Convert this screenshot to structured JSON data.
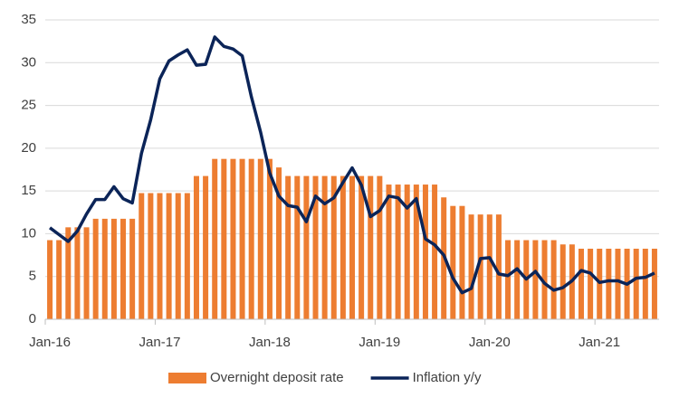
{
  "chart_data": {
    "type": "bar_line",
    "categories": [
      "Jan-16",
      null,
      null,
      null,
      null,
      null,
      null,
      null,
      null,
      null,
      null,
      null,
      "Jan-17",
      null,
      null,
      null,
      null,
      null,
      null,
      null,
      null,
      null,
      null,
      null,
      "Jan-18",
      null,
      null,
      null,
      null,
      null,
      null,
      null,
      null,
      null,
      null,
      null,
      "Jan-19",
      null,
      null,
      null,
      null,
      null,
      null,
      null,
      null,
      null,
      null,
      null,
      "Jan-20",
      null,
      null,
      null,
      null,
      null,
      null,
      null,
      null,
      null,
      null,
      null,
      "Jan-21",
      null,
      null,
      null,
      null,
      null,
      null
    ],
    "series": [
      {
        "name": "Overnight deposit rate",
        "type": "bar",
        "color": "#ed7d31",
        "values": [
          9.25,
          9.25,
          10.75,
          10.75,
          10.75,
          11.75,
          11.75,
          11.75,
          11.75,
          11.75,
          14.75,
          14.75,
          14.75,
          14.75,
          14.75,
          14.75,
          16.75,
          16.75,
          18.75,
          18.75,
          18.75,
          18.75,
          18.75,
          18.75,
          18.75,
          17.75,
          16.75,
          16.75,
          16.75,
          16.75,
          16.75,
          16.75,
          16.75,
          16.75,
          16.75,
          16.75,
          16.75,
          15.75,
          15.75,
          15.75,
          15.75,
          15.75,
          15.75,
          14.25,
          13.25,
          13.25,
          12.25,
          12.25,
          12.25,
          12.25,
          9.25,
          9.25,
          9.25,
          9.25,
          9.25,
          9.25,
          8.75,
          8.75,
          8.25,
          8.25,
          8.25,
          8.25,
          8.25,
          8.25,
          8.25,
          8.25,
          8.25
        ]
      },
      {
        "name": "Inflation y/y",
        "type": "line",
        "color": "#0b2458",
        "values": [
          10.7,
          9.9,
          9.1,
          10.3,
          12.3,
          14.0,
          14.0,
          15.5,
          14.1,
          13.6,
          19.4,
          23.3,
          28.1,
          30.2,
          30.9,
          31.5,
          29.7,
          29.8,
          33.0,
          31.9,
          31.6,
          30.8,
          26.0,
          21.9,
          17.1,
          14.4,
          13.3,
          13.1,
          11.4,
          14.4,
          13.5,
          14.2,
          16.0,
          17.7,
          15.7,
          12.0,
          12.7,
          14.4,
          14.2,
          13.0,
          14.1,
          9.4,
          8.7,
          7.5,
          4.8,
          3.1,
          3.6,
          7.1,
          7.2,
          5.3,
          5.1,
          5.9,
          4.7,
          5.6,
          4.2,
          3.4,
          3.7,
          4.5,
          5.7,
          5.4,
          4.3,
          4.5,
          4.5,
          4.1,
          4.8,
          4.9,
          5.4
        ]
      }
    ],
    "ylim": [
      0,
      35
    ],
    "yticks": [
      0,
      5,
      10,
      15,
      20,
      25,
      30,
      35
    ],
    "grid": true,
    "legend": "bottom"
  }
}
